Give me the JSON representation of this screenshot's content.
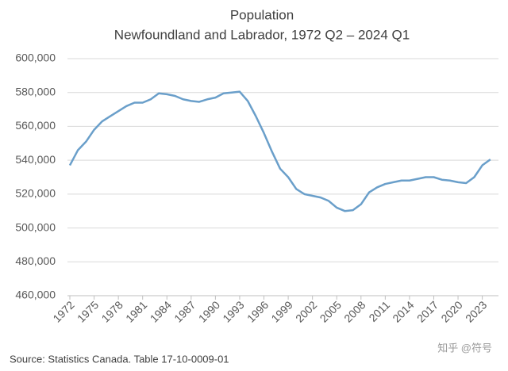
{
  "chart_data": {
    "type": "line",
    "title": "Population",
    "subtitle": "Newfoundland and Labrador, 1972 Q2 – 2024 Q1",
    "source": "Source: Statistics Canada. Table 17-10-0009-01",
    "watermark": "知乎 @符号",
    "x": [
      1972,
      1973,
      1974,
      1975,
      1976,
      1977,
      1978,
      1979,
      1980,
      1981,
      1982,
      1983,
      1984,
      1985,
      1986,
      1987,
      1988,
      1989,
      1990,
      1991,
      1992,
      1993,
      1994,
      1995,
      1996,
      1997,
      1998,
      1999,
      2000,
      2001,
      2002,
      2003,
      2004,
      2005,
      2006,
      2007,
      2008,
      2009,
      2010,
      2011,
      2012,
      2013,
      2014,
      2015,
      2016,
      2017,
      2018,
      2019,
      2020,
      2021,
      2022,
      2023,
      2024
    ],
    "series": [
      {
        "name": "Population",
        "color": "#6a9fca",
        "values": [
          537000,
          546000,
          551000,
          558000,
          563000,
          566000,
          569000,
          572000,
          574000,
          574000,
          576000,
          579500,
          579000,
          578000,
          576000,
          575000,
          574500,
          576000,
          577000,
          579500,
          580000,
          580500,
          575000,
          566000,
          556000,
          545000,
          535000,
          530000,
          523000,
          520000,
          519000,
          518000,
          516000,
          512000,
          510000,
          510500,
          514000,
          521000,
          524000,
          526000,
          527000,
          528000,
          528000,
          529000,
          530000,
          530000,
          528500,
          528000,
          527000,
          526500,
          530000,
          537000,
          540500
        ]
      }
    ],
    "xlim": [
      1972,
      2025
    ],
    "xticks": [
      1972,
      1975,
      1978,
      1981,
      1984,
      1987,
      1990,
      1993,
      1996,
      1999,
      2002,
      2005,
      2008,
      2011,
      2014,
      2017,
      2020,
      2023
    ],
    "ylim": [
      460000,
      600000
    ],
    "yticks": [
      {
        "value": 460000,
        "label": "460,000"
      },
      {
        "value": 480000,
        "label": "480,000"
      },
      {
        "value": 500000,
        "label": "500,000"
      },
      {
        "value": 520000,
        "label": "520,000"
      },
      {
        "value": 540000,
        "label": "540,000"
      },
      {
        "value": 560000,
        "label": "560,000"
      },
      {
        "value": 580000,
        "label": "580,000"
      },
      {
        "value": 600000,
        "label": "600,000"
      }
    ],
    "grid": true
  }
}
